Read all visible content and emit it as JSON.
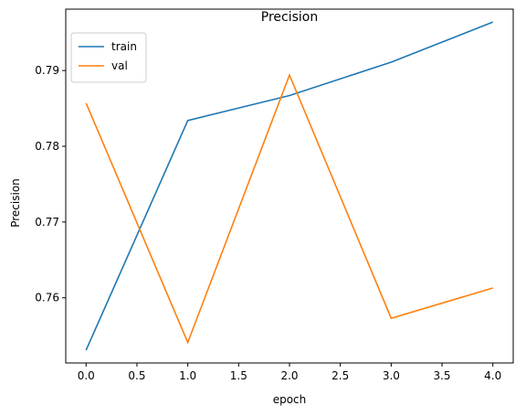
{
  "chart_data": {
    "type": "line",
    "title": "Precision",
    "xlabel": "epoch",
    "ylabel": "Precision",
    "x": [
      0,
      1,
      2,
      3,
      4
    ],
    "xlim": [
      -0.2,
      4.2
    ],
    "ylim": [
      0.7514,
      0.7981
    ],
    "xticks": [
      0.0,
      0.5,
      1.0,
      1.5,
      2.0,
      2.5,
      3.0,
      3.5,
      4.0
    ],
    "xtick_labels": [
      "0.0",
      "0.5",
      "1.0",
      "1.5",
      "2.0",
      "2.5",
      "3.0",
      "3.5",
      "4.0"
    ],
    "yticks": [
      0.76,
      0.77,
      0.78,
      0.79
    ],
    "ytick_labels": [
      "0.76",
      "0.77",
      "0.78",
      "0.79"
    ],
    "grid": false,
    "legend": "upper-left",
    "series": [
      {
        "name": "train",
        "color": "#1f77b4",
        "values": [
          0.7531,
          0.7834,
          0.7867,
          0.7911,
          0.7964
        ]
      },
      {
        "name": "val",
        "color": "#ff7f0e",
        "values": [
          0.7857,
          0.7541,
          0.7894,
          0.7573,
          0.7613
        ]
      }
    ]
  }
}
